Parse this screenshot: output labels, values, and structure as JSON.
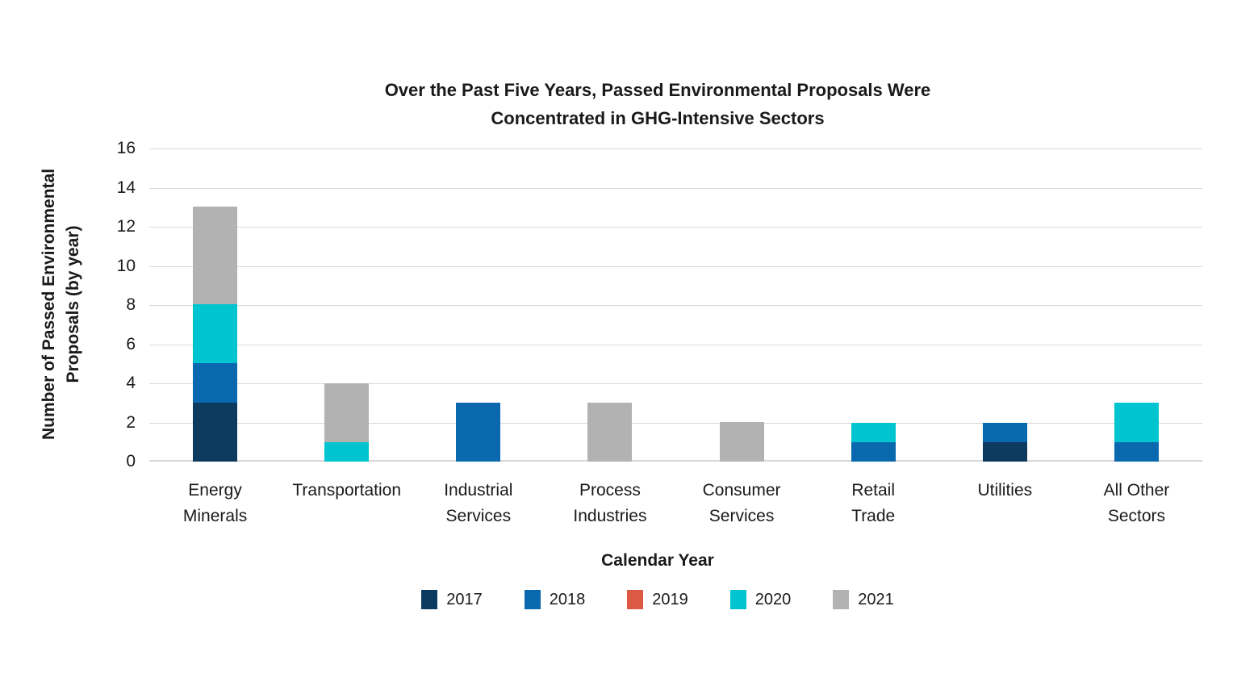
{
  "chart_data": {
    "type": "bar",
    "stacked": true,
    "title": "Over the Past Five Years, Passed Environmental Proposals Were Concentrated in GHG-Intensive Sectors",
    "title_lines": [
      "Over the Past Five Years, Passed Environmental Proposals Were",
      "Concentrated in GHG-Intensive Sectors"
    ],
    "xlabel": "Calendar Year",
    "ylabel": "Number of Passed Environmental Proposals (by year)",
    "ylabel_lines": [
      "Number of Passed Environmental",
      "Proposals (by year)"
    ],
    "ylim": [
      0,
      16
    ],
    "yticks": [
      0,
      2,
      4,
      6,
      8,
      10,
      12,
      14,
      16
    ],
    "grid": "horizontal",
    "legend_position": "bottom",
    "categories": [
      "Energy Minerals",
      "Transportation",
      "Industrial Services",
      "Process Industries",
      "Consumer Services",
      "Retail Trade",
      "Utilities",
      "All Other Sectors"
    ],
    "categories_wrapped": [
      [
        "Energy",
        "Minerals"
      ],
      [
        "Transportation"
      ],
      [
        "Industrial",
        "Services"
      ],
      [
        "Process",
        "Industries"
      ],
      [
        "Consumer",
        "Services"
      ],
      [
        "Retail",
        "Trade"
      ],
      [
        "Utilities"
      ],
      [
        "All Other",
        "Sectors"
      ]
    ],
    "series": [
      {
        "name": "2017",
        "color": "#0d3b5f",
        "values": [
          3,
          0,
          0,
          0,
          0,
          0,
          1,
          0
        ]
      },
      {
        "name": "2018",
        "color": "#0a68ae",
        "values": [
          2,
          0,
          3,
          0,
          0,
          1,
          1,
          1
        ]
      },
      {
        "name": "2019",
        "color": "#dc5a43",
        "values": [
          0,
          0,
          0,
          0,
          0,
          0,
          0,
          0
        ]
      },
      {
        "name": "2020",
        "color": "#00c4cf",
        "values": [
          3,
          1,
          0,
          0,
          0,
          1,
          0,
          2
        ]
      },
      {
        "name": "2021",
        "color": "#b2b2b2",
        "values": [
          5,
          3,
          0,
          3,
          2,
          0,
          0,
          0
        ]
      }
    ]
  },
  "colors": {
    "gridline": "#d9d9d9",
    "text": "#1a1a1a",
    "background": "#ffffff"
  }
}
